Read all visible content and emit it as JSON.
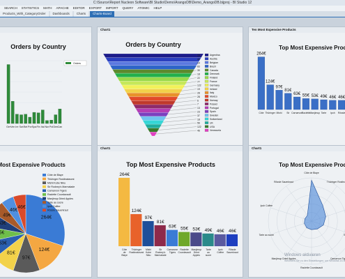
{
  "window": {
    "title": "C:\\Source\\Report Nucleon Software\\BI Studio\\Demo\\ArangoDB\\Demo_ArangoDB.bijproj - BI Studio 12"
  },
  "menu": [
    "SEARCH",
    "STATISTICS",
    "MATH",
    "APACHE",
    "EDITOR",
    "EXPORT",
    "IMPORT",
    "QUERY",
    "ATOMIC",
    "HELP"
  ],
  "tabs": [
    {
      "label": "Products_With_CategoryOrder",
      "active": false
    },
    {
      "label": "Dashboards",
      "active": false
    },
    {
      "label": "Charts",
      "active": false
    },
    {
      "label": "Charts-Board",
      "active": true
    }
  ],
  "panels": {
    "p1": {
      "header": "",
      "title": "Orders by Country",
      "legend": "Orders"
    },
    "p2": {
      "header": "Chart1",
      "title": "Orders by Country"
    },
    "p3": {
      "header": "Ten Most Expensive Products",
      "title": "Top Most Expensive Products"
    },
    "p4": {
      "header": "",
      "title": "Top Most Expensive Products"
    },
    "p5": {
      "header": "Chart1",
      "title": "Top Most Expensive Products"
    },
    "p6": {
      "header": "Chart1",
      "title": "Top Most Expensive Products"
    }
  },
  "watermark": {
    "line1": "Windows aktivieren",
    "line2": "Wechseln Sie zu den Einstellungen, um Windows zu aktivieren."
  },
  "chart_data": [
    {
      "type": "bar",
      "title": "Orders by Country",
      "categories": [
        "Ger",
        "Ven",
        "Ire",
        "Swi",
        "Bel",
        "Por",
        "Spa",
        "Fin",
        "Ital",
        "Nor",
        "Pol",
        "Den",
        "Can"
      ],
      "values": [
        122,
        46,
        19,
        18,
        19,
        13,
        23,
        22,
        28,
        6,
        7,
        18,
        30
      ],
      "ylim": [
        0,
        130
      ],
      "legend": [
        "Orders"
      ]
    },
    {
      "type": "funnel",
      "title": "Orders by Country",
      "categories": [
        "Argentina",
        "Austria",
        "Belgium",
        "Brazil",
        "Canada",
        "Denmark",
        "Finland",
        "France",
        "Germany",
        "Ireland",
        "Italy",
        "Mexico",
        "Norway",
        "Poland",
        "Portugal",
        "Spain",
        "Sweden",
        "Switzerland",
        "UK",
        "USA",
        "Venezuela"
      ],
      "values": [
        16,
        40,
        19,
        83,
        30,
        18,
        22,
        77,
        122,
        19,
        28,
        28,
        6,
        7,
        13,
        23,
        37,
        18,
        56,
        122,
        46
      ],
      "colors": [
        "#1c1c8a",
        "#2a3fbf",
        "#5a78e0",
        "#2d64c8",
        "#5c8a2d",
        "#22b04a",
        "#9ad94a",
        "#c6e85a",
        "#f2f25a",
        "#f2d24a",
        "#e8922a",
        "#e24a2a",
        "#c0392b",
        "#8e2a6a",
        "#b43db4",
        "#7b3fbf",
        "#6fc2f0",
        "#35d6d6",
        "#1fae9e",
        "#3a7a2a",
        "#e040c0"
      ]
    },
    {
      "type": "bar",
      "title": "Top Most Expensive Products",
      "categories": [
        "Côte de Blaye",
        "Thüringer Rostbratwurst",
        "Mishi Kobe Niku",
        "Sir Rodney's Marmalade",
        "Carnarvon Tigers",
        "Raclette Courdavault",
        "Manjimup Dried Apples",
        "Tarte au sucre",
        "Ipoh Coffee",
        "Rössle Sauerkraut"
      ],
      "values": [
        264,
        124,
        97,
        81,
        63,
        55,
        53,
        49,
        46,
        46
      ],
      "unit": "€"
    },
    {
      "type": "pie",
      "title": "Top Most Expensive Products",
      "categories": [
        "Côte de Blaye",
        "Thüringer Rostbratwurst",
        "Mishi Kobe Niku",
        "Sir Rodney's Marmalade",
        "Carnarvon Tigers",
        "Raclette Courdavault",
        "Manjimup Dried Apples",
        "Tarte au sucre",
        "Ipoh Coffee",
        "Rössle Sauerkraut"
      ],
      "values": [
        264,
        124,
        97,
        81,
        63,
        55,
        53,
        49,
        46,
        46
      ],
      "colors": [
        "#3a7bd5",
        "#f4a742",
        "#5a5a5a",
        "#f2d24a",
        "#2a5fb0",
        "#6fbf4a",
        "#1f3f7a",
        "#a85a2a",
        "#4f8fe0",
        "#d94a2a"
      ],
      "unit": "€"
    },
    {
      "type": "bar",
      "title": "Top Most Expensive Products",
      "categories": [
        "Côte de Blaye",
        "Thüringer Rostbratwurst",
        "Mishi Kobe Niku",
        "Sir Rodney's Marmalade",
        "Carnarvon Tigers",
        "Raclette Courdavault",
        "Manjimup Dried Apples",
        "Tarte au sucre",
        "Ipoh Coffee",
        "Rössle Sauerkraut"
      ],
      "values": [
        264,
        124,
        97,
        81,
        63,
        55,
        53,
        49,
        46,
        46
      ],
      "colors": [
        "#f4b942",
        "#e8622a",
        "#1e4f9a",
        "#8e2a4a",
        "#3a7bd5",
        "#6fa82a",
        "#4a4a8a",
        "#2a8a8a",
        "#5a5aa0",
        "#1e3fc0"
      ],
      "unit": "€"
    },
    {
      "type": "radar",
      "title": "Top Most Expensive Products",
      "categories": [
        "Côte de Blaye",
        "Thüringer Rostbratwurst",
        "Mishi Kobe Niku",
        "Sir Rodney's Marmalade",
        "Carnarvon Tigers",
        "Raclette Courdavault",
        "Manjimup Dried Apples",
        "Tarte au sucre",
        "Ipoh Coffee",
        "Rössle Sauerkraut"
      ],
      "values": [
        264,
        124,
        97,
        81,
        63,
        55,
        53,
        49,
        46,
        46
      ],
      "unit": "€"
    }
  ]
}
